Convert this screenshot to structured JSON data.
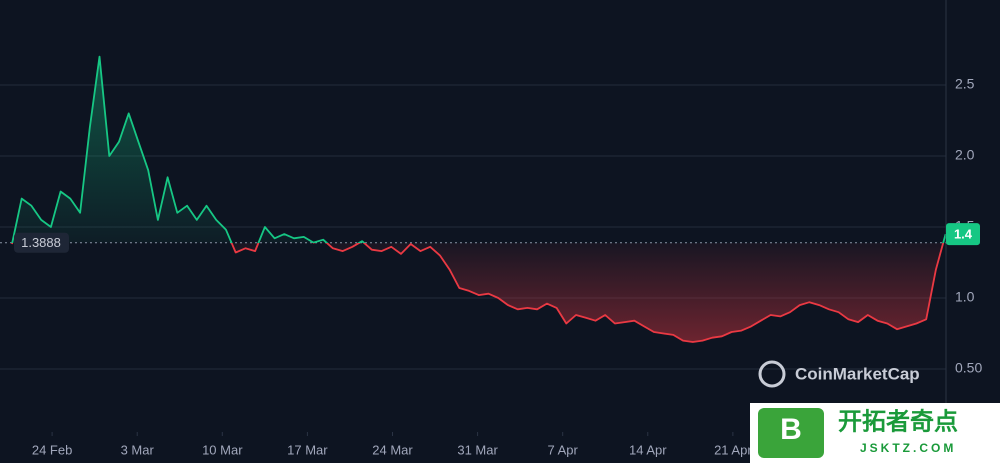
{
  "chart_data": {
    "type": "line",
    "x": [
      -3.3,
      -2.5,
      -1.7,
      -0.9,
      -0.1,
      0.7,
      1.5,
      2.3,
      3.1,
      3.9,
      4.7,
      5.5,
      6.3,
      7.1,
      7.9,
      8.7,
      9.5,
      10.3,
      11.1,
      11.9,
      12.7,
      13.5,
      14.3,
      15.1,
      15.9,
      16.7,
      17.5,
      18.3,
      19.1,
      19.9,
      20.7,
      21.5,
      22.3,
      23.1,
      23.9,
      24.7,
      25.5,
      26.3,
      27.1,
      27.9,
      28.7,
      29.5,
      30.3,
      31.1,
      31.9,
      32.7,
      33.5,
      34.3,
      35.1,
      35.9,
      36.7,
      37.5,
      38.3,
      39.1,
      39.9,
      40.7,
      41.5,
      42.3,
      43.1,
      43.9,
      44.7,
      45.5,
      46.3,
      47.1,
      47.9,
      48.7,
      49.5,
      50.3,
      51.1,
      51.9,
      52.7,
      53.5,
      54.3,
      55.1,
      55.9,
      56.7,
      57.5,
      58.3,
      59.1,
      59.9,
      60.7,
      61.5,
      62.3,
      63.1,
      63.9,
      64.7,
      65.5,
      66.3,
      67.1,
      67.9,
      68.7,
      69.5,
      70.3,
      71.1,
      71.9,
      72.7,
      73.5
    ],
    "series": [
      {
        "color": "#16c784",
        "color_below": "#ea3943",
        "values": [
          1.38,
          1.7,
          1.65,
          1.55,
          1.5,
          1.75,
          1.7,
          1.6,
          2.2,
          2.7,
          2.0,
          2.1,
          2.3,
          2.1,
          1.9,
          1.55,
          1.85,
          1.6,
          1.65,
          1.55,
          1.65,
          1.55,
          1.48,
          1.32,
          1.35,
          1.33,
          1.5,
          1.42,
          1.45,
          1.42,
          1.43,
          1.39,
          1.41,
          1.35,
          1.33,
          1.36,
          1.4,
          1.34,
          1.33,
          1.36,
          1.31,
          1.38,
          1.33,
          1.36,
          1.3,
          1.2,
          1.07,
          1.05,
          1.02,
          1.03,
          1.0,
          0.95,
          0.92,
          0.93,
          0.92,
          0.96,
          0.93,
          0.82,
          0.88,
          0.86,
          0.84,
          0.88,
          0.82,
          0.83,
          0.84,
          0.8,
          0.76,
          0.75,
          0.74,
          0.7,
          0.69,
          0.7,
          0.72,
          0.73,
          0.76,
          0.77,
          0.8,
          0.84,
          0.88,
          0.87,
          0.9,
          0.95,
          0.97,
          0.95,
          0.92,
          0.9,
          0.85,
          0.83,
          0.88,
          0.84,
          0.82,
          0.78,
          0.8,
          0.82,
          0.85,
          1.2,
          1.45
        ]
      }
    ],
    "baseline": 1.3888,
    "price_badge": 1.4,
    "xlim": [
      -3.3,
      73.5
    ],
    "xticks": [
      {
        "value": 0,
        "label": "24 Feb"
      },
      {
        "value": 7,
        "label": "3 Mar"
      },
      {
        "value": 14,
        "label": "10 Mar"
      },
      {
        "value": 21,
        "label": "17 Mar"
      },
      {
        "value": 28,
        "label": "24 Mar"
      },
      {
        "value": 35,
        "label": "31 Mar"
      },
      {
        "value": 42,
        "label": "7 Apr"
      },
      {
        "value": 49,
        "label": "14 Apr"
      },
      {
        "value": 56,
        "label": "21 Apr"
      }
    ],
    "ylim": [
      0.07,
      3.0
    ],
    "yticks": [
      {
        "value": 0.5,
        "label": "0.50"
      },
      {
        "value": 1,
        "label": "1.0"
      },
      1.5,
      {
        "value": 2,
        "label": "2.0"
      },
      2.5
    ],
    "grid": true
  },
  "watermark": "CoinMarketCap",
  "logo": {
    "badge": "B",
    "title": "开拓者奇点",
    "url": "JSKTZ.COM"
  }
}
